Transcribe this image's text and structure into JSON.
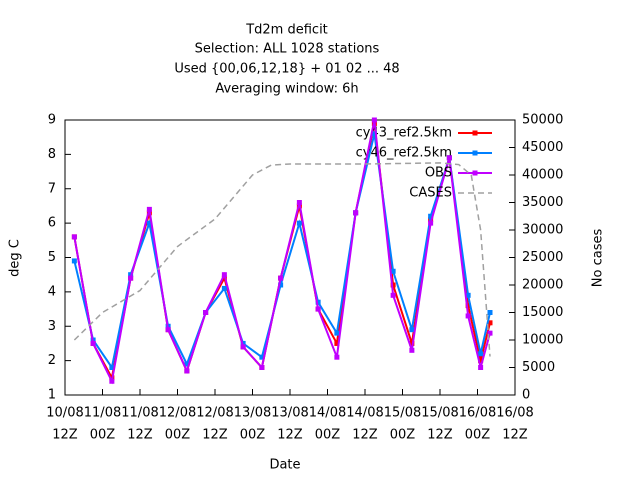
{
  "chart_data": {
    "type": "line",
    "title": [
      "Td2m deficit",
      "Selection: ALL    1028 stations",
      "Used {00,06,12,18} + 01 02 ... 48",
      "Averaging window:  6h"
    ],
    "x_label": "Date",
    "y_label": "deg C",
    "y2_label": "No cases",
    "xlim": [
      0,
      144
    ],
    "xticks": [
      {
        "value": 0,
        "label": [
          "10/08",
          "12Z"
        ]
      },
      {
        "value": 12,
        "label": [
          "11/08",
          "00Z"
        ]
      },
      {
        "value": 24,
        "label": [
          "11/08",
          "12Z"
        ]
      },
      {
        "value": 36,
        "label": [
          "12/08",
          "00Z"
        ]
      },
      {
        "value": 48,
        "label": [
          "12/08",
          "12Z"
        ]
      },
      {
        "value": 60,
        "label": [
          "13/08",
          "00Z"
        ]
      },
      {
        "value": 72,
        "label": [
          "13/08",
          "12Z"
        ]
      },
      {
        "value": 84,
        "label": [
          "14/08",
          "00Z"
        ]
      },
      {
        "value": 96,
        "label": [
          "14/08",
          "12Z"
        ]
      },
      {
        "value": 108,
        "label": [
          "15/08",
          "00Z"
        ]
      },
      {
        "value": 120,
        "label": [
          "15/08",
          "12Z"
        ]
      },
      {
        "value": 132,
        "label": [
          "16/08",
          "00Z"
        ]
      },
      {
        "value": 144,
        "label": [
          "16/08",
          "12Z"
        ]
      }
    ],
    "ylim": [
      1,
      9
    ],
    "yticks": [
      1,
      2,
      3,
      4,
      5,
      6,
      7,
      8,
      9
    ],
    "y2lim": [
      0,
      50000
    ],
    "y2ticks": [
      0,
      5000,
      10000,
      15000,
      20000,
      25000,
      30000,
      35000,
      40000,
      45000,
      50000
    ],
    "x": [
      3,
      9,
      15,
      21,
      27,
      33,
      39,
      45,
      51,
      57,
      63,
      69,
      75,
      81,
      87,
      93,
      99,
      105,
      111,
      117,
      123,
      129,
      133,
      136
    ],
    "series": [
      {
        "name": "cy43_ref2.5km",
        "color": "#ff0000",
        "values": [
          5.6,
          2.5,
          1.5,
          4.4,
          6.3,
          2.9,
          1.7,
          3.4,
          4.4,
          2.4,
          1.8,
          4.4,
          6.5,
          3.5,
          2.5,
          6.3,
          8.9,
          4.2,
          2.5,
          6.1,
          7.9,
          3.6,
          2.0,
          3.1
        ]
      },
      {
        "name": "cy46_ref2.5km",
        "color": "#0080ff",
        "values": [
          4.9,
          2.6,
          1.8,
          4.5,
          6.0,
          3.0,
          1.9,
          3.4,
          4.1,
          2.5,
          2.1,
          4.2,
          6.0,
          3.7,
          2.8,
          6.3,
          8.6,
          4.6,
          2.9,
          6.2,
          7.9,
          3.9,
          2.2,
          3.4
        ]
      },
      {
        "name": "OBS",
        "color": "#c000ff",
        "values": [
          5.6,
          2.5,
          1.4,
          4.4,
          6.4,
          2.9,
          1.7,
          3.4,
          4.5,
          2.4,
          1.8,
          4.4,
          6.6,
          3.5,
          2.1,
          6.3,
          9.0,
          3.9,
          2.3,
          6.0,
          7.9,
          3.3,
          1.8,
          2.8
        ]
      },
      {
        "name": "CASES",
        "color": "#a0a0a0",
        "axis": "y2",
        "dashed": true,
        "x": [
          3,
          12,
          24,
          36,
          48,
          54,
          60,
          66,
          72,
          96,
          120,
          126,
          130,
          133,
          136
        ],
        "values": [
          10000,
          15000,
          19000,
          27000,
          32000,
          36000,
          40000,
          41800,
          42000,
          42000,
          42200,
          41900,
          40000,
          30000,
          7000
        ]
      }
    ]
  }
}
